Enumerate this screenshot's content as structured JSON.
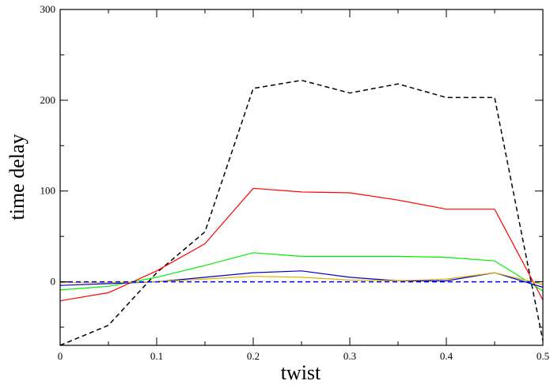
{
  "chart_data": {
    "type": "line",
    "title": "",
    "xlabel": "twist",
    "ylabel": "time delay",
    "xlim": [
      0,
      0.5
    ],
    "ylim": [
      -70,
      300
    ],
    "xticks": [
      0,
      0.1,
      0.2,
      0.3,
      0.4,
      0.5
    ],
    "xtick_labels": [
      "0",
      "0.1",
      "0.2",
      "0.3",
      "0.4",
      "0.5"
    ],
    "yticks": [
      0,
      100,
      200,
      300
    ],
    "ytick_labels": [
      "0",
      "100",
      "200",
      "300"
    ],
    "grid": false,
    "legend": "none",
    "x": [
      0,
      0.05,
      0.1,
      0.15,
      0.2,
      0.25,
      0.3,
      0.35,
      0.4,
      0.45,
      0.5
    ],
    "series": [
      {
        "color": "#000000",
        "style": "dashed",
        "values": [
          -70,
          -48,
          10,
          55,
          213,
          222,
          208,
          218,
          203,
          203,
          -65
        ]
      },
      {
        "color": "#ff0000",
        "style": "solid",
        "values": [
          -21,
          -12,
          12,
          42,
          103,
          99,
          98,
          90,
          80,
          80,
          -20
        ]
      },
      {
        "color": "#00ee00",
        "style": "solid",
        "values": [
          -9,
          -5,
          5,
          18,
          32,
          28,
          28,
          28,
          27,
          23,
          -10
        ]
      },
      {
        "color": "#0000cc",
        "style": "solid",
        "values": [
          -4,
          -2,
          0,
          5,
          10,
          12,
          5,
          1,
          1,
          10,
          -6
        ]
      },
      {
        "color": "#e0b000",
        "style": "solid",
        "values": [
          -1,
          -1,
          0,
          3,
          6,
          5,
          2,
          1,
          3,
          10,
          -3
        ]
      },
      {
        "color": "#0000ff",
        "style": "dashed",
        "values": [
          0,
          0,
          0,
          0,
          0,
          0,
          0,
          0,
          0,
          0,
          0
        ]
      }
    ]
  }
}
